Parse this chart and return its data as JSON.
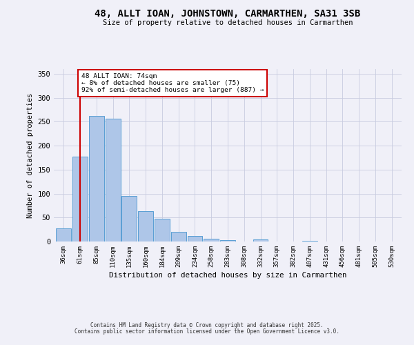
{
  "title": "48, ALLT IOAN, JOHNSTOWN, CARMARTHEN, SA31 3SB",
  "subtitle": "Size of property relative to detached houses in Carmarthen",
  "xlabel": "Distribution of detached houses by size in Carmarthen",
  "ylabel": "Number of detached properties",
  "bin_labels": [
    "36sqm",
    "61sqm",
    "85sqm",
    "110sqm",
    "135sqm",
    "160sqm",
    "184sqm",
    "209sqm",
    "234sqm",
    "258sqm",
    "283sqm",
    "308sqm",
    "332sqm",
    "357sqm",
    "382sqm",
    "407sqm",
    "431sqm",
    "456sqm",
    "481sqm",
    "505sqm",
    "530sqm"
  ],
  "bar_values": [
    27,
    177,
    262,
    257,
    95,
    63,
    48,
    20,
    11,
    6,
    3,
    0,
    4,
    0,
    0,
    2,
    0,
    0,
    0,
    0,
    0
  ],
  "bar_color": "#aec6e8",
  "bar_edge_color": "#5a9fd4",
  "ylim": [
    0,
    360
  ],
  "yticks": [
    0,
    50,
    100,
    150,
    200,
    250,
    300,
    350
  ],
  "property_line_x": 1.0,
  "property_line_color": "#cc0000",
  "annotation_text": "48 ALLT IOAN: 74sqm\n← 8% of detached houses are smaller (75)\n92% of semi-detached houses are larger (887) →",
  "annotation_box_color": "#ffffff",
  "annotation_box_edge_color": "#cc0000",
  "footer_line1": "Contains HM Land Registry data © Crown copyright and database right 2025.",
  "footer_line2": "Contains public sector information licensed under the Open Government Licence v3.0.",
  "background_color": "#f0f0f8",
  "grid_color": "#c8cce0"
}
